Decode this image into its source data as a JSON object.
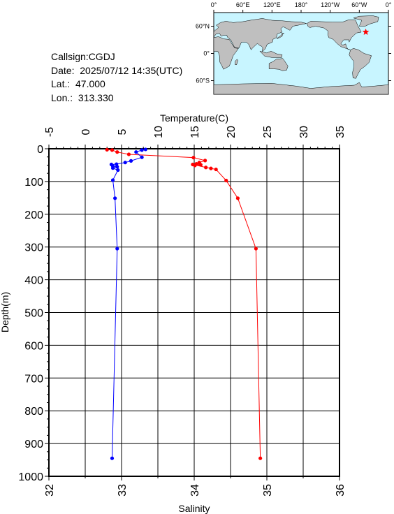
{
  "info": {
    "callsign": "Callsign:CGDJ",
    "date": "Date:  2025/07/12 14:35(UTC)",
    "lat": "Lat.:  47.000",
    "lon": "Lon.:  313.330"
  },
  "map": {
    "lon_labels": [
      "0°",
      "60°E",
      "120°E",
      "180°",
      "120°W",
      "60°W",
      "0°"
    ],
    "lat_labels": [
      "60°N",
      "0°",
      "60°S"
    ],
    "ocean_color": "#c8f5ff",
    "land_color": "#bfbfbf",
    "marker": {
      "lon": 313.33,
      "lat": 47.0,
      "color": "#ff0000",
      "icon": "star-icon"
    }
  },
  "chart_data": {
    "type": "line",
    "top_axis_label": "Temperature(C)",
    "bottom_axis_label": "Salinity",
    "ylabel": "Depth(m)",
    "temperature_ticks": [
      "-5",
      "0",
      "5",
      "10",
      "15",
      "20",
      "25",
      "30",
      "35"
    ],
    "salinity_ticks": [
      "32",
      "33",
      "34",
      "35",
      "36"
    ],
    "depth_ticks": [
      "0",
      "100",
      "200",
      "300",
      "400",
      "500",
      "600",
      "700",
      "800",
      "900",
      "1000"
    ],
    "xlim_temperature": [
      -5,
      35
    ],
    "xlim_salinity": [
      32,
      36
    ],
    "ylim_depth": [
      0,
      1000
    ],
    "grid": true,
    "series": [
      {
        "axis": "temperature",
        "color": "#ff0000",
        "points": [
          [
            3.0,
            3
          ],
          [
            3.7,
            4
          ],
          [
            4.4,
            10
          ],
          [
            6.0,
            17
          ],
          [
            14.9,
            27
          ],
          [
            16.5,
            36
          ],
          [
            15.7,
            42
          ],
          [
            15.3,
            46
          ],
          [
            15.9,
            49
          ],
          [
            15.1,
            51
          ],
          [
            14.8,
            48
          ],
          [
            16.6,
            57
          ],
          [
            17.3,
            60
          ],
          [
            18.0,
            63
          ],
          [
            19.4,
            97
          ],
          [
            21.0,
            151
          ],
          [
            23.5,
            305
          ],
          [
            24.1,
            945
          ]
        ]
      },
      {
        "axis": "salinity",
        "color": "#0000ff",
        "points": [
          [
            33.33,
            2
          ],
          [
            33.28,
            4
          ],
          [
            33.2,
            10
          ],
          [
            33.28,
            26
          ],
          [
            33.13,
            37
          ],
          [
            33.05,
            42
          ],
          [
            32.93,
            47
          ],
          [
            32.86,
            48
          ],
          [
            32.88,
            53
          ],
          [
            32.94,
            55
          ],
          [
            32.88,
            59
          ],
          [
            32.95,
            65
          ],
          [
            32.88,
            96
          ],
          [
            32.91,
            151
          ],
          [
            32.94,
            305
          ],
          [
            32.87,
            945
          ]
        ]
      }
    ]
  }
}
